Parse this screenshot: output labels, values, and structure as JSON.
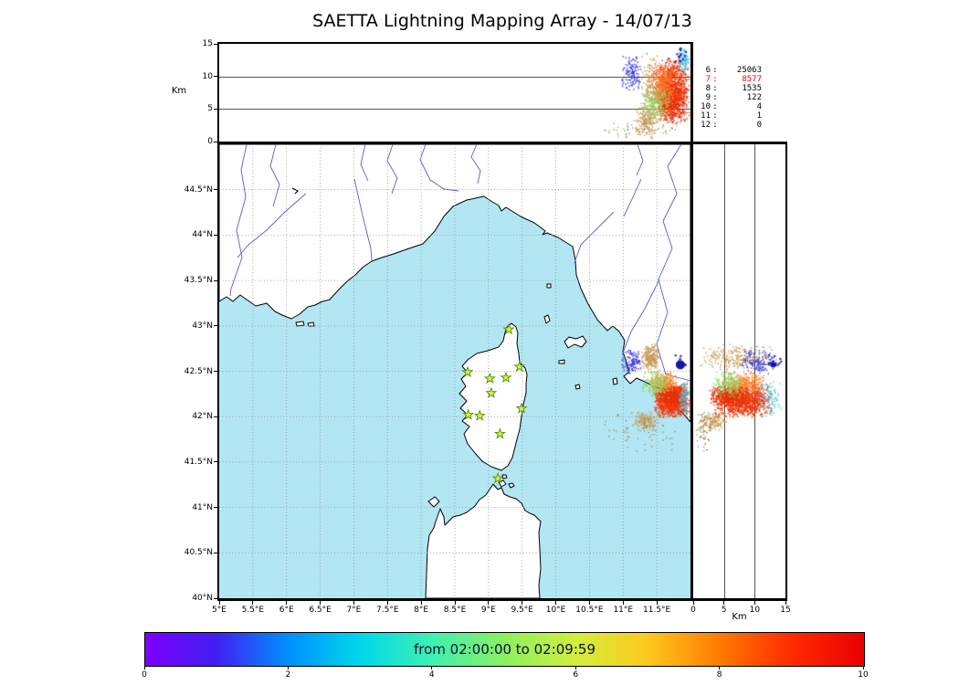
{
  "title": "SAETTA Lightning Mapping Array - 14/07/13",
  "colorbar": {
    "label": "from 02:00:00 to 02:09:59",
    "min": 0,
    "max": 10,
    "tick_labels": [
      "0",
      "2",
      "4",
      "6",
      "8",
      "10"
    ],
    "tick_values": [
      0,
      2,
      4,
      6,
      8,
      10
    ],
    "gradient": [
      "#7c00ff",
      "#4020f0",
      "#0090ff",
      "#00d8e8",
      "#40f0b0",
      "#8cf060",
      "#d2ee3c",
      "#ffc81e",
      "#ff7a00",
      "#ff2a00",
      "#ea0000"
    ]
  },
  "axes": {
    "map_x": {
      "values": [
        5,
        5.5,
        6,
        6.5,
        7,
        7.5,
        8,
        8.5,
        9,
        9.5,
        10,
        10.5,
        11,
        11.5
      ],
      "labels": [
        "5°E",
        "5.5°E",
        "6°E",
        "6.5°E",
        "7°E",
        "7.5°E",
        "8°E",
        "8.5°E",
        "9°E",
        "9.5°E",
        "10°E",
        "10.5°E",
        "11°E",
        "11.5°E"
      ]
    },
    "map_y": {
      "values": [
        40,
        40.5,
        41,
        41.5,
        42,
        42.5,
        43,
        43.5,
        44,
        44.5
      ],
      "labels": [
        "40°N",
        "40.5°N",
        "41°N",
        "41.5°N",
        "42°N",
        "42.5°N",
        "43°N",
        "43.5°N",
        "44°N",
        "44.5°N"
      ]
    },
    "altitude": {
      "values": [
        0,
        5,
        10,
        15
      ],
      "labels": [
        "0",
        "5",
        "10",
        "15"
      ],
      "axis_label": "Km"
    }
  },
  "stats": {
    "rows": [
      {
        "level": "6",
        "value": "25063",
        "color": "#000000"
      },
      {
        "level": "7",
        "value": "8577",
        "color": "#ff0000"
      },
      {
        "level": "8",
        "value": "1535",
        "color": "#000000"
      },
      {
        "level": "9",
        "value": "122",
        "color": "#000000"
      },
      {
        "level": "10",
        "value": "4",
        "color": "#000000"
      },
      {
        "level": "11",
        "value": "1",
        "color": "#000000"
      },
      {
        "level": "12",
        "value": "0",
        "color": "#000000"
      }
    ]
  },
  "map_colors": {
    "sea": "#b2e6f2",
    "land": "#ffffff",
    "coast": "#000000",
    "river": "#5b5bcf",
    "grid": "#909090",
    "station_fill": "#d8f04e",
    "station_stroke": "#4f8f00"
  },
  "chart_data": {
    "type": "scatter",
    "title": "SAETTA Lightning Mapping Array - 14/07/13",
    "time_window": "from 02:00:00 to 02:09:59",
    "map_extent": {
      "lon_e": [
        5,
        12
      ],
      "lat_n": [
        40,
        45
      ]
    },
    "altitude_km_range": [
      0,
      15
    ],
    "stations_lon_lat": [
      [
        9.3,
        42.96
      ],
      [
        9.46,
        42.55
      ],
      [
        9.02,
        42.42
      ],
      [
        8.69,
        42.49
      ],
      [
        9.26,
        42.43
      ],
      [
        9.04,
        42.26
      ],
      [
        9.49,
        42.09
      ],
      [
        8.7,
        42.02
      ],
      [
        8.87,
        42.01
      ],
      [
        9.17,
        41.81
      ],
      [
        9.14,
        41.32
      ]
    ],
    "station_level_counts": [
      [
        6,
        25063
      ],
      [
        7,
        8577
      ],
      [
        8,
        1535
      ],
      [
        9,
        122
      ],
      [
        10,
        4
      ],
      [
        11,
        1
      ],
      [
        12,
        0
      ]
    ],
    "clusters": [
      {
        "name": "red-core",
        "color": "#f13a0f",
        "t": 9.3,
        "count": 1100,
        "lon": [
          11.45,
          12.0
        ],
        "lat": [
          41.98,
          42.38
        ],
        "alt_km": [
          3,
          13
        ],
        "px": 1.6
      },
      {
        "name": "red-dense-band",
        "color": "#e93009",
        "t": 9.7,
        "count": 300,
        "lon": [
          11.5,
          11.95
        ],
        "lat": [
          42.1,
          42.35
        ],
        "alt_km": [
          2.5,
          9
        ],
        "px": 1.6
      },
      {
        "name": "orange-fringe",
        "color": "#ff7d26",
        "t": 8.2,
        "count": 300,
        "lon": [
          11.38,
          11.8
        ],
        "lat": [
          42.25,
          42.5
        ],
        "alt_km": [
          4.5,
          12
        ],
        "px": 1.5
      },
      {
        "name": "tan-column",
        "color": "#c79a54",
        "t": 6.8,
        "count": 240,
        "lon": [
          11.26,
          11.55
        ],
        "lat": [
          42.5,
          42.8
        ],
        "alt_km": [
          0.5,
          14
        ],
        "px": 1.5
      },
      {
        "name": "tan-low",
        "color": "#c79a54",
        "t": 6.8,
        "count": 150,
        "lon": [
          11.15,
          11.52
        ],
        "lat": [
          41.84,
          42.06
        ],
        "alt_km": [
          1,
          5.5
        ],
        "px": 1.5
      },
      {
        "name": "green-mid",
        "color": "#8ade6a",
        "t": 5.0,
        "count": 170,
        "lon": [
          11.25,
          11.72
        ],
        "lat": [
          42.2,
          42.52
        ],
        "alt_km": [
          3,
          8.5
        ],
        "px": 1.5
      },
      {
        "name": "cyan-high",
        "color": "#43c9e6",
        "t": 3.2,
        "count": 90,
        "lon": [
          11.8,
          12.0
        ],
        "lat": [
          42.0,
          42.42
        ],
        "alt_km": [
          10.5,
          14.6
        ],
        "px": 1.5
      },
      {
        "name": "blue-early",
        "color": "#3a3ada",
        "t": 0.9,
        "count": 130,
        "lon": [
          10.95,
          11.3
        ],
        "lat": [
          42.45,
          42.75
        ],
        "alt_km": [
          7.5,
          13.5
        ],
        "px": 1.5
      },
      {
        "name": "navy-specks",
        "color": "#1c1cb0",
        "t": 0.3,
        "count": 14,
        "lon": [
          11.7,
          11.98
        ],
        "lat": [
          42.5,
          42.7
        ],
        "alt_km": [
          12,
          14.5
        ],
        "px": 2.2
      },
      {
        "name": "ground-noise",
        "color": "#8a6a2a",
        "t": 6.0,
        "count": 60,
        "lon": [
          10.6,
          11.9
        ],
        "lat": [
          41.6,
          42.12
        ],
        "alt_km": [
          0.3,
          3
        ],
        "px": 1.2
      }
    ],
    "highlight_point": {
      "lon": 11.85,
      "lat": 42.57,
      "alt_km": 13,
      "color": "#1414aa",
      "radius_px": 5
    }
  }
}
